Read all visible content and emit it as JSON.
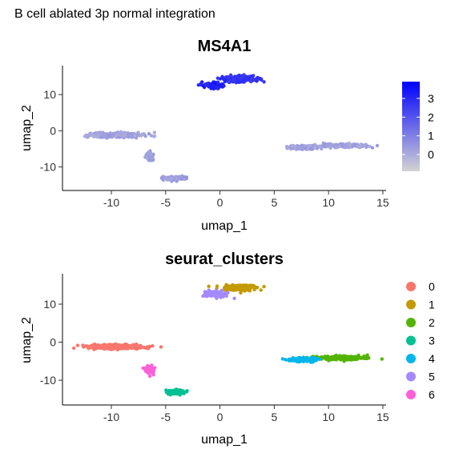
{
  "figure": {
    "title": "B cell ablated 3p normal integration"
  },
  "chart_data": [
    {
      "type": "scatter",
      "title": "MS4A1",
      "xlabel": "umap_1",
      "ylabel": "umap_2",
      "xlim": [
        -14.5,
        15.3
      ],
      "ylim": [
        -16.5,
        18
      ],
      "xticks": [
        -10,
        -5,
        0,
        5,
        10,
        15
      ],
      "yticks": [
        -10,
        0,
        10
      ],
      "grid": false,
      "legend": {
        "type": "colorbar",
        "placement": "right",
        "range": [
          -0.9,
          3.9
        ],
        "ticks": [
          0,
          1,
          2,
          3
        ],
        "colors": [
          "#d3d3d3",
          "#0000ff"
        ]
      },
      "clusters": [
        {
          "label": "0",
          "cx": -9.6,
          "cy": -1.2,
          "sx": 2.4,
          "sy": 0.55,
          "n": 320,
          "expr": 0.2
        },
        {
          "label": "1",
          "cx": 1.8,
          "cy": 14.3,
          "sx": 1.4,
          "sy": 0.7,
          "n": 200,
          "expr": 2.7
        },
        {
          "label": "2",
          "cx": 11.2,
          "cy": -4.1,
          "sx": 1.9,
          "sy": 0.45,
          "n": 220,
          "expr": 0.2
        },
        {
          "label": "3",
          "cx": -4.2,
          "cy": -13.1,
          "sx": 0.9,
          "sy": 0.55,
          "n": 110,
          "expr": 0.3
        },
        {
          "label": "4",
          "cx": 7.6,
          "cy": -4.6,
          "sx": 1.2,
          "sy": 0.45,
          "n": 160,
          "expr": 0.2
        },
        {
          "label": "5",
          "cx": -0.5,
          "cy": 12.6,
          "sx": 0.9,
          "sy": 0.8,
          "n": 100,
          "expr": 3.2
        },
        {
          "label": "6",
          "cx": -6.4,
          "cy": -7.2,
          "sx": 0.35,
          "sy": 1.0,
          "n": 55,
          "expr": 0.2
        }
      ]
    },
    {
      "type": "scatter",
      "title": "seurat_clusters",
      "xlabel": "umap_1",
      "ylabel": "umap_2",
      "xlim": [
        -14.5,
        15.3
      ],
      "ylim": [
        -16.5,
        18
      ],
      "xticks": [
        -10,
        -5,
        0,
        5,
        10,
        15
      ],
      "yticks": [
        -10,
        0,
        10
      ],
      "grid": false,
      "legend": {
        "type": "categorical",
        "placement": "right",
        "entries": [
          {
            "label": "0",
            "color": "#F8766D"
          },
          {
            "label": "1",
            "color": "#C49A00"
          },
          {
            "label": "2",
            "color": "#53B400"
          },
          {
            "label": "3",
            "color": "#00C094"
          },
          {
            "label": "4",
            "color": "#00B6EB"
          },
          {
            "label": "5",
            "color": "#A58AFF"
          },
          {
            "label": "6",
            "color": "#FB61D7"
          }
        ]
      },
      "clusters": [
        {
          "label": "0",
          "cx": -9.6,
          "cy": -1.2,
          "sx": 2.4,
          "sy": 0.55,
          "n": 320
        },
        {
          "label": "1",
          "cx": 1.8,
          "cy": 14.3,
          "sx": 1.4,
          "sy": 0.7,
          "n": 200
        },
        {
          "label": "2",
          "cx": 11.2,
          "cy": -4.1,
          "sx": 1.9,
          "sy": 0.45,
          "n": 220
        },
        {
          "label": "3",
          "cx": -4.2,
          "cy": -13.1,
          "sx": 0.9,
          "sy": 0.55,
          "n": 110
        },
        {
          "label": "4",
          "cx": 7.6,
          "cy": -4.6,
          "sx": 1.2,
          "sy": 0.45,
          "n": 160
        },
        {
          "label": "5",
          "cx": -0.5,
          "cy": 12.6,
          "sx": 0.9,
          "sy": 0.8,
          "n": 100
        },
        {
          "label": "6",
          "cx": -6.4,
          "cy": -7.2,
          "sx": 0.35,
          "sy": 1.0,
          "n": 55
        }
      ]
    }
  ]
}
